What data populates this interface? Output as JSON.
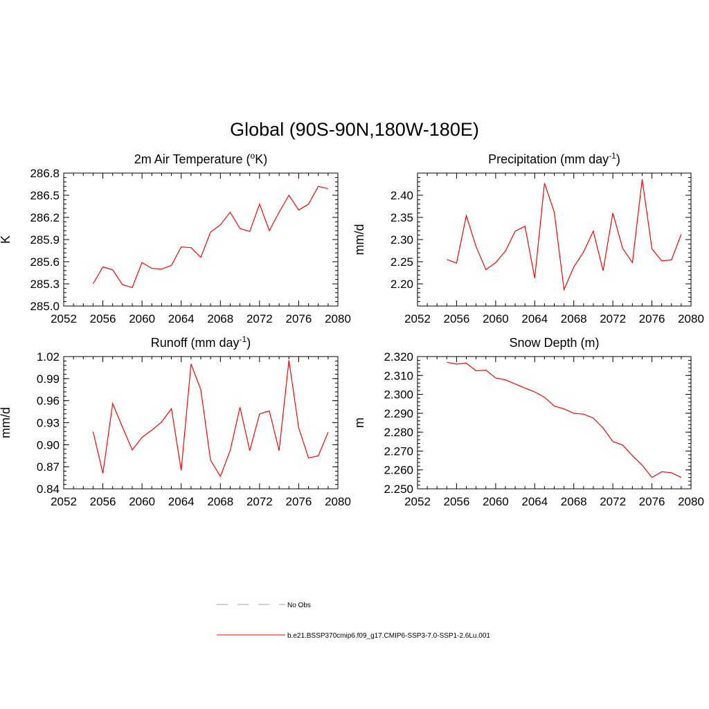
{
  "figure": {
    "title": "Global (90S-90N,180W-180E)"
  },
  "colors": {
    "series": "#ff0000",
    "no_obs": "#9999dd",
    "axis": "#000000"
  },
  "legend": {
    "entries": [
      {
        "label": "No Obs",
        "style": "dashed",
        "color": "#9999dd"
      },
      {
        "label": "b.e21.BSSP370cmip6.f09_g17.CMIP6-SSP3-7.0-SSP1-2.6Lu.001",
        "style": "solid",
        "color": "#ff0000"
      }
    ]
  },
  "chart_data": [
    {
      "type": "line",
      "title": "2m Air Temperature (",
      "title_sup": "o",
      "title_suffix": "K)",
      "ylabel": "K",
      "xlim": [
        2052,
        2080
      ],
      "ylim": [
        285.0,
        286.8
      ],
      "xticks": [
        2052,
        2056,
        2060,
        2064,
        2068,
        2072,
        2076,
        2080
      ],
      "yticks": [
        285.0,
        285.3,
        285.6,
        285.9,
        286.2,
        286.5,
        286.8
      ],
      "ytick_labels": [
        "285.0",
        "285.3",
        "285.6",
        "285.9",
        "286.2",
        "286.5",
        "286.8"
      ],
      "x": [
        2055,
        2056,
        2057,
        2058,
        2059,
        2060,
        2061,
        2062,
        2063,
        2064,
        2065,
        2066,
        2067,
        2068,
        2069,
        2070,
        2071,
        2072,
        2073,
        2074,
        2075,
        2076,
        2077,
        2078,
        2079
      ],
      "series": [
        {
          "values": [
            285.3,
            285.53,
            285.49,
            285.29,
            285.25,
            285.59,
            285.51,
            285.5,
            285.55,
            285.8,
            285.79,
            285.66,
            286.0,
            286.1,
            286.27,
            286.05,
            286.01,
            286.38,
            286.02,
            286.27,
            286.5,
            286.3,
            286.38,
            286.62,
            286.59
          ]
        }
      ]
    },
    {
      "type": "line",
      "title": "Precipitation (mm day",
      "title_sup": "-1",
      "title_suffix": ")",
      "ylabel": "mm/d",
      "xlim": [
        2052,
        2080
      ],
      "ylim": [
        2.15,
        2.45
      ],
      "xticks": [
        2052,
        2056,
        2060,
        2064,
        2068,
        2072,
        2076,
        2080
      ],
      "yticks": [
        2.2,
        2.25,
        2.3,
        2.35,
        2.4
      ],
      "ytick_labels": [
        "2.20",
        "2.25",
        "2.30",
        "2.35",
        "2.40"
      ],
      "x": [
        2055,
        2056,
        2057,
        2058,
        2059,
        2060,
        2061,
        2062,
        2063,
        2064,
        2065,
        2066,
        2067,
        2068,
        2069,
        2070,
        2071,
        2072,
        2073,
        2074,
        2075,
        2076,
        2077,
        2078,
        2079
      ],
      "series": [
        {
          "values": [
            2.255,
            2.247,
            2.354,
            2.284,
            2.232,
            2.248,
            2.274,
            2.319,
            2.33,
            2.213,
            2.427,
            2.362,
            2.187,
            2.238,
            2.272,
            2.319,
            2.23,
            2.36,
            2.28,
            2.248,
            2.436,
            2.279,
            2.252,
            2.254,
            2.312
          ]
        }
      ]
    },
    {
      "type": "line",
      "title": "Runoff (mm day",
      "title_sup": "-1",
      "title_suffix": ")",
      "ylabel": "mm/d",
      "xlim": [
        2052,
        2080
      ],
      "ylim": [
        0.84,
        1.02
      ],
      "xticks": [
        2052,
        2056,
        2060,
        2064,
        2068,
        2072,
        2076,
        2080
      ],
      "yticks": [
        0.84,
        0.87,
        0.9,
        0.93,
        0.96,
        0.99,
        1.02
      ],
      "ytick_labels": [
        "0.84",
        "0.87",
        "0.90",
        "0.93",
        "0.96",
        "0.99",
        "1.02"
      ],
      "x": [
        2055,
        2056,
        2057,
        2058,
        2059,
        2060,
        2061,
        2062,
        2063,
        2064,
        2065,
        2066,
        2067,
        2068,
        2069,
        2070,
        2071,
        2072,
        2073,
        2074,
        2075,
        2076,
        2077,
        2078,
        2079
      ],
      "series": [
        {
          "values": [
            0.918,
            0.861,
            0.956,
            0.924,
            0.893,
            0.91,
            0.92,
            0.931,
            0.949,
            0.865,
            1.01,
            0.975,
            0.879,
            0.857,
            0.892,
            0.951,
            0.892,
            0.942,
            0.946,
            0.892,
            1.015,
            0.923,
            0.882,
            0.885,
            0.917
          ]
        }
      ]
    },
    {
      "type": "line",
      "title": "Snow Depth (m)",
      "title_sup": "",
      "title_suffix": "",
      "ylabel": "m",
      "xlim": [
        2052,
        2080
      ],
      "ylim": [
        2.25,
        2.32
      ],
      "xticks": [
        2052,
        2056,
        2060,
        2064,
        2068,
        2072,
        2076,
        2080
      ],
      "yticks": [
        2.25,
        2.26,
        2.27,
        2.28,
        2.29,
        2.3,
        2.31,
        2.32
      ],
      "ytick_labels": [
        "2.250",
        "2.260",
        "2.270",
        "2.280",
        "2.290",
        "2.300",
        "2.310",
        "2.320"
      ],
      "x": [
        2055,
        2056,
        2057,
        2058,
        2059,
        2060,
        2061,
        2062,
        2063,
        2064,
        2065,
        2066,
        2067,
        2068,
        2069,
        2070,
        2071,
        2072,
        2073,
        2074,
        2075,
        2076,
        2077,
        2078,
        2079
      ],
      "series": [
        {
          "values": [
            2.317,
            2.316,
            2.3165,
            2.3125,
            2.3128,
            2.3087,
            2.3077,
            2.3055,
            2.3033,
            2.3013,
            2.2985,
            2.2938,
            2.2923,
            2.29,
            2.2895,
            2.2875,
            2.2822,
            2.275,
            2.2732,
            2.2675,
            2.2625,
            2.256,
            2.259,
            2.2585,
            2.256
          ]
        }
      ]
    }
  ]
}
